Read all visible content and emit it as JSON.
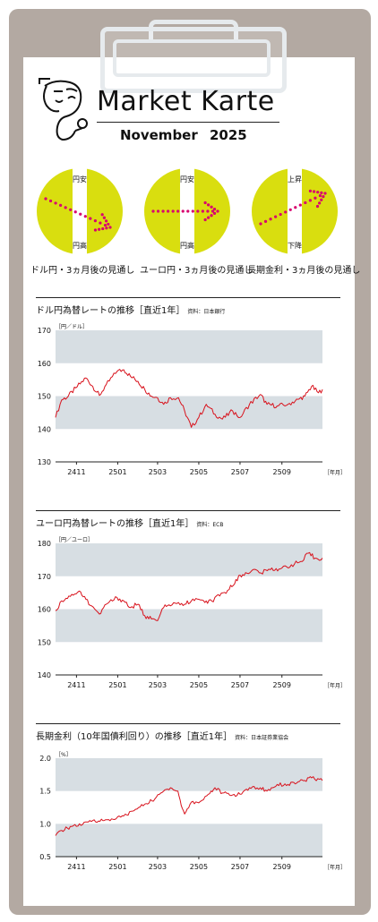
{
  "header": {
    "title": "Market Karte",
    "month": "November",
    "year": "2025"
  },
  "icons": {
    "logo": "stethoscope-face-icon"
  },
  "colors": {
    "circle_fill": "#d9de0f",
    "dots": "#d8006e",
    "band": "#d7dee3",
    "line": "#d8111b",
    "board": "#b3a9a2"
  },
  "outlooks": [
    {
      "caption": "ドル円・3ヵ月後の見通し",
      "top_label": "円安",
      "bottom_label": "円高",
      "direction": "down"
    },
    {
      "caption": "ユーロ円・3ヵ月後の見通し",
      "top_label": "円安",
      "bottom_label": "円高",
      "direction": "flat"
    },
    {
      "caption": "長期金利・3ヵ月後の見通し",
      "top_label": "上昇",
      "bottom_label": "下降",
      "direction": "up"
    }
  ],
  "chart_data": [
    {
      "type": "line",
      "title": "ドル円為替レートの推移［直近1年］",
      "source": "資料：日本銀行",
      "ylabel": "［円／ドル］",
      "xunit": "［年月］",
      "ylim": [
        130,
        170
      ],
      "yticks": [
        130,
        140,
        150,
        160,
        170
      ],
      "bands": [
        [
          140,
          150
        ],
        [
          160,
          170
        ]
      ],
      "xticks": [
        "2411",
        "2501",
        "2503",
        "2505",
        "2507",
        "2509"
      ],
      "x_range": [
        "2024-10-01",
        "2025-10-31"
      ],
      "series": [
        {
          "values": [
            [
              "2024-10-01",
              143.5
            ],
            [
              "2024-10-10",
              148.8
            ],
            [
              "2024-10-20",
              150.0
            ],
            [
              "2024-10-31",
              152.5
            ],
            [
              "2024-11-15",
              155.5
            ],
            [
              "2024-11-25",
              153.0
            ],
            [
              "2024-12-05",
              150.2
            ],
            [
              "2024-12-15",
              153.5
            ],
            [
              "2024-12-31",
              157.5
            ],
            [
              "2025-01-10",
              158.0
            ],
            [
              "2025-01-20",
              156.0
            ],
            [
              "2025-01-31",
              154.5
            ],
            [
              "2025-02-10",
              152.0
            ],
            [
              "2025-02-20",
              150.0
            ],
            [
              "2025-03-01",
              149.5
            ],
            [
              "2025-03-10",
              147.5
            ],
            [
              "2025-03-20",
              149.5
            ],
            [
              "2025-04-01",
              149.5
            ],
            [
              "2025-04-10",
              145.5
            ],
            [
              "2025-04-20",
              140.5
            ],
            [
              "2025-05-01",
              143.5
            ],
            [
              "2025-05-12",
              147.5
            ],
            [
              "2025-05-25",
              144.5
            ],
            [
              "2025-06-05",
              143.0
            ],
            [
              "2025-06-20",
              145.5
            ],
            [
              "2025-07-01",
              143.5
            ],
            [
              "2025-07-15",
              147.5
            ],
            [
              "2025-07-31",
              150.5
            ],
            [
              "2025-08-10",
              147.5
            ],
            [
              "2025-08-25",
              147.0
            ],
            [
              "2025-09-10",
              147.5
            ],
            [
              "2025-09-25",
              149.0
            ],
            [
              "2025-10-05",
              150.0
            ],
            [
              "2025-10-15",
              153.0
            ],
            [
              "2025-10-25",
              151.0
            ],
            [
              "2025-10-31",
              152.0
            ]
          ]
        }
      ]
    },
    {
      "type": "line",
      "title": "ユーロ円為替レートの推移［直近1年］",
      "source": "資料：ECB",
      "ylabel": "［円／ユーロ］",
      "xunit": "［年月］",
      "ylim": [
        140,
        180
      ],
      "yticks": [
        140,
        150,
        160,
        170,
        180
      ],
      "bands": [
        [
          150,
          160
        ],
        [
          170,
          180
        ]
      ],
      "xticks": [
        "2411",
        "2501",
        "2503",
        "2505",
        "2507",
        "2509"
      ],
      "x_range": [
        "2024-10-01",
        "2025-10-31"
      ],
      "series": [
        {
          "values": [
            [
              "2024-10-01",
              159.5
            ],
            [
              "2024-10-10",
              162.5
            ],
            [
              "2024-10-25",
              164.5
            ],
            [
              "2024-11-05",
              165.5
            ],
            [
              "2024-11-15",
              163.0
            ],
            [
              "2024-11-28",
              160.0
            ],
            [
              "2024-12-05",
              158.5
            ],
            [
              "2024-12-15",
              161.5
            ],
            [
              "2024-12-31",
              163.5
            ],
            [
              "2025-01-10",
              162.5
            ],
            [
              "2025-01-20",
              160.5
            ],
            [
              "2025-01-31",
              161.5
            ],
            [
              "2025-02-10",
              158.0
            ],
            [
              "2025-02-20",
              157.0
            ],
            [
              "2025-03-01",
              156.5
            ],
            [
              "2025-03-10",
              160.5
            ],
            [
              "2025-03-20",
              161.0
            ],
            [
              "2025-04-01",
              162.0
            ],
            [
              "2025-04-10",
              161.5
            ],
            [
              "2025-04-20",
              162.5
            ],
            [
              "2025-05-01",
              163.0
            ],
            [
              "2025-05-10",
              162.0
            ],
            [
              "2025-05-20",
              162.5
            ],
            [
              "2025-06-01",
              164.0
            ],
            [
              "2025-06-15",
              166.0
            ],
            [
              "2025-06-25",
              169.0
            ],
            [
              "2025-07-05",
              170.5
            ],
            [
              "2025-07-20",
              172.0
            ],
            [
              "2025-08-01",
              171.0
            ],
            [
              "2025-08-15",
              172.0
            ],
            [
              "2025-09-01",
              172.5
            ],
            [
              "2025-09-15",
              173.5
            ],
            [
              "2025-10-01",
              174.5
            ],
            [
              "2025-10-10",
              177.0
            ],
            [
              "2025-10-20",
              175.5
            ],
            [
              "2025-10-31",
              175.5
            ]
          ]
        }
      ]
    },
    {
      "type": "line",
      "title": "長期金利（10年国債利回り）の推移［直近1年］",
      "source": "資料：日本証券業協会",
      "ylabel": "［%］",
      "xunit": "［年月］",
      "ylim": [
        0.5,
        2.0
      ],
      "yticks": [
        0.5,
        1.0,
        1.5,
        2.0
      ],
      "bands": [
        [
          0.5,
          1.0
        ],
        [
          1.5,
          2.0
        ]
      ],
      "xticks": [
        "2411",
        "2501",
        "2503",
        "2505",
        "2507",
        "2509"
      ],
      "x_range": [
        "2024-10-01",
        "2025-10-31"
      ],
      "series": [
        {
          "values": [
            [
              "2024-10-01",
              0.82
            ],
            [
              "2024-10-10",
              0.9
            ],
            [
              "2024-10-25",
              0.96
            ],
            [
              "2024-11-10",
              0.99
            ],
            [
              "2024-11-25",
              1.05
            ],
            [
              "2024-12-10",
              1.05
            ],
            [
              "2024-12-25",
              1.07
            ],
            [
              "2025-01-10",
              1.12
            ],
            [
              "2025-01-25",
              1.2
            ],
            [
              "2025-02-10",
              1.3
            ],
            [
              "2025-02-25",
              1.38
            ],
            [
              "2025-03-10",
              1.5
            ],
            [
              "2025-03-20",
              1.55
            ],
            [
              "2025-03-31",
              1.5
            ],
            [
              "2025-04-05",
              1.28
            ],
            [
              "2025-04-10",
              1.15
            ],
            [
              "2025-04-20",
              1.33
            ],
            [
              "2025-05-01",
              1.32
            ],
            [
              "2025-05-15",
              1.45
            ],
            [
              "2025-05-25",
              1.55
            ],
            [
              "2025-06-05",
              1.47
            ],
            [
              "2025-06-20",
              1.44
            ],
            [
              "2025-07-01",
              1.45
            ],
            [
              "2025-07-15",
              1.55
            ],
            [
              "2025-07-31",
              1.55
            ],
            [
              "2025-08-10",
              1.5
            ],
            [
              "2025-08-25",
              1.6
            ],
            [
              "2025-09-10",
              1.6
            ],
            [
              "2025-09-25",
              1.64
            ],
            [
              "2025-10-05",
              1.66
            ],
            [
              "2025-10-15",
              1.7
            ],
            [
              "2025-10-31",
              1.66
            ]
          ]
        }
      ]
    }
  ]
}
